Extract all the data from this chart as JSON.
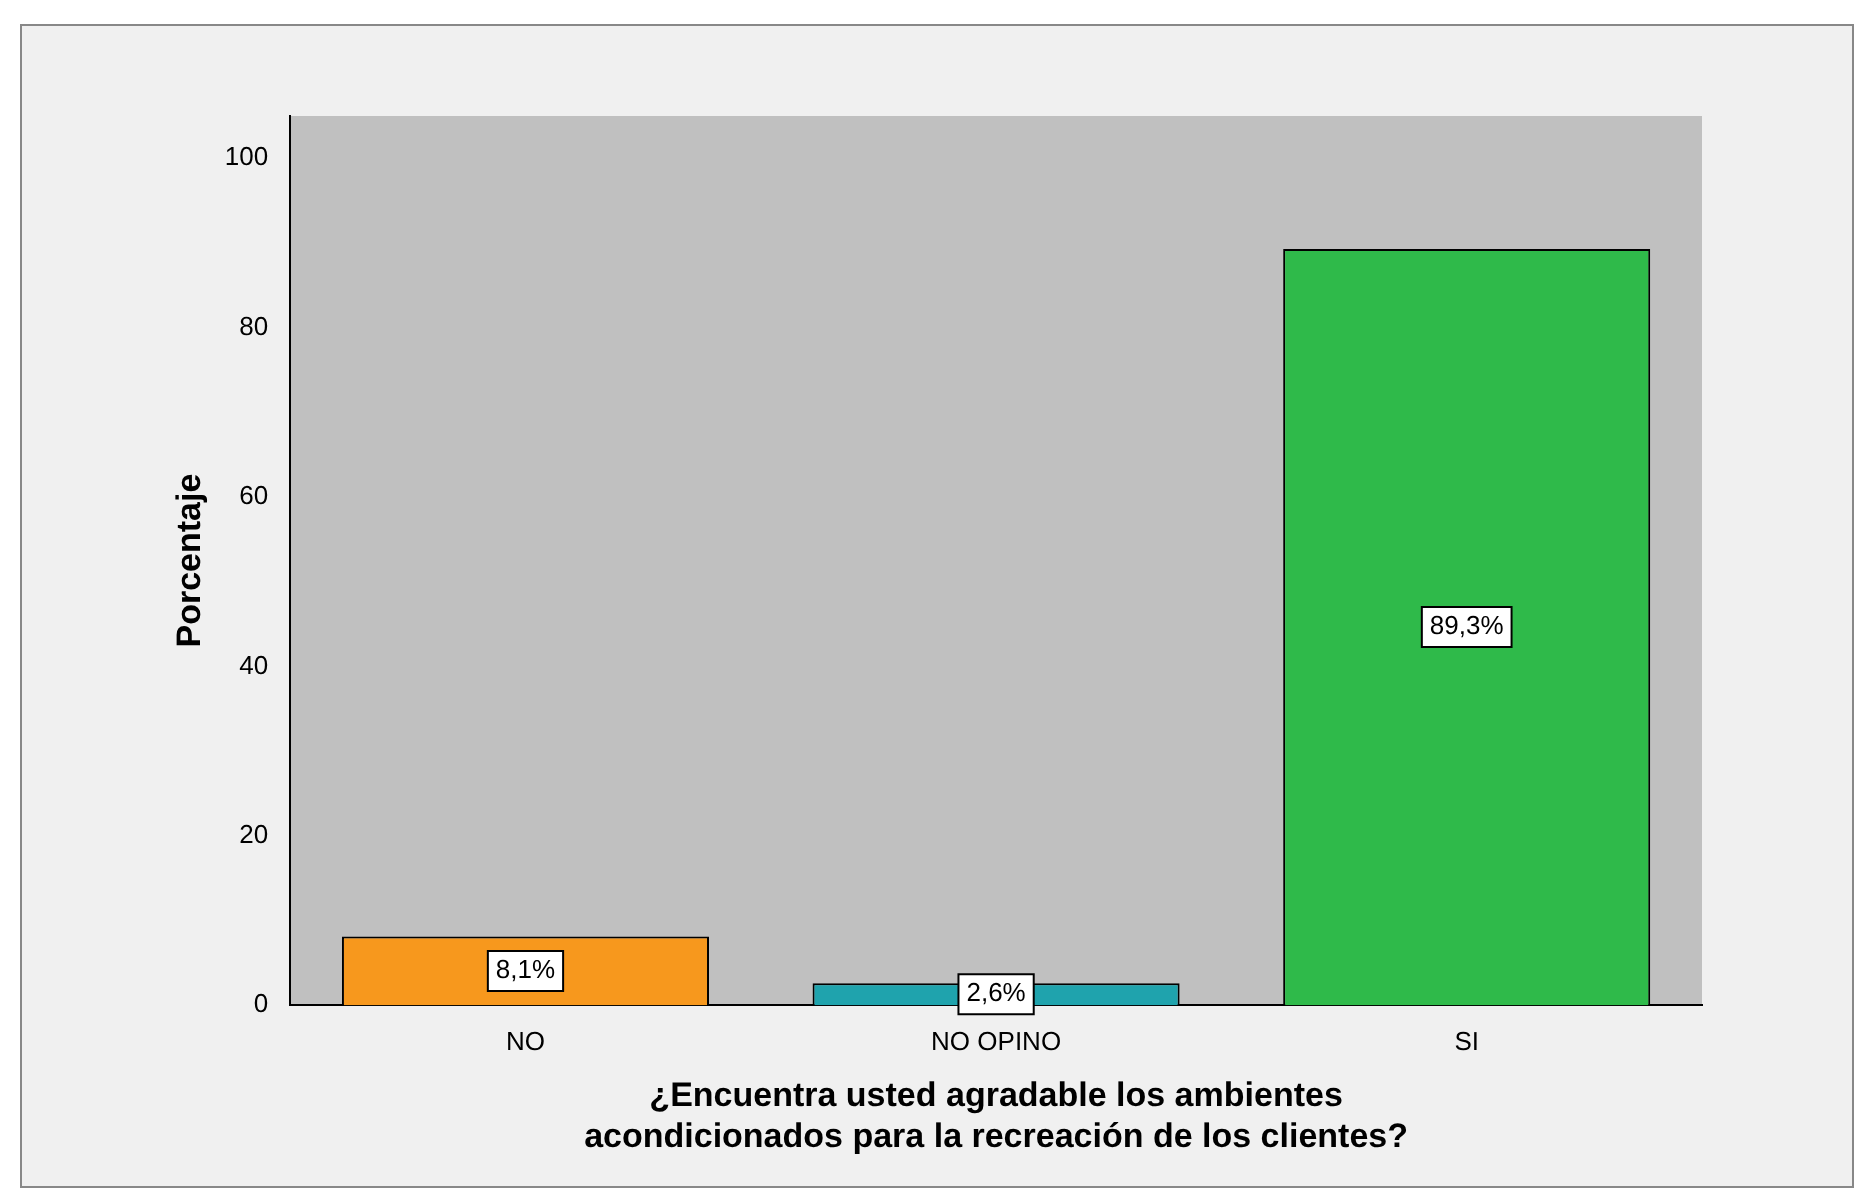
{
  "chart_data": {
    "type": "bar",
    "xlabel": "¿Encuentra usted agradable los ambientes\nacondicionados para la recreación de los clientes?",
    "ylabel": "Porcentaje",
    "categories": [
      "NO",
      "NO OPINO",
      "SI"
    ],
    "values": [
      8.1,
      2.6,
      89.3
    ],
    "colors": [
      "#f7981d",
      "#1fa3ad",
      "#2fba4a"
    ],
    "value_labels": [
      "8,1%",
      "2,6%",
      "89,3%"
    ],
    "ylim": [
      0,
      105
    ],
    "yticks": [
      0,
      20,
      40,
      60,
      80,
      100
    ],
    "grid": false,
    "legend": false
  }
}
